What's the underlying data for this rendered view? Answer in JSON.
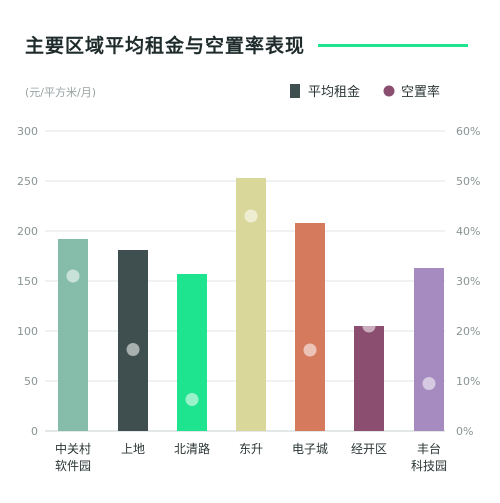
{
  "header": {
    "title": "主要区域平均租金与空置率表现",
    "accent_color": "#1ee38f"
  },
  "chart_data": {
    "type": "bar",
    "title": "主要区域平均租金与空置率表现",
    "y_unit_label": "(元/平方米/月)",
    "categories": [
      [
        "中关村",
        "软件园"
      ],
      [
        "上地"
      ],
      [
        "北清路"
      ],
      [
        "东升"
      ],
      [
        "电子城"
      ],
      [
        "经开区"
      ],
      [
        "丰台",
        "科技园"
      ]
    ],
    "series": [
      {
        "name": "平均租金",
        "kind": "bar",
        "axis": "left",
        "values": [
          192,
          181,
          157,
          253,
          208,
          105,
          163
        ],
        "colors": [
          "#86bcaa",
          "#3f4e4f",
          "#1ee38f",
          "#d9d799",
          "#d67a5e",
          "#8b4d70",
          "#a58bc0"
        ],
        "legend_color": "#3f4e4f"
      },
      {
        "name": "空置率",
        "kind": "point",
        "axis": "right",
        "values": [
          31,
          16.3,
          6.3,
          43,
          16.2,
          21,
          9.5
        ],
        "legend_color": "#8b4d70"
      }
    ],
    "y_left": {
      "min": 0,
      "max": 300,
      "ticks": [
        0,
        50,
        100,
        150,
        200,
        250,
        300
      ]
    },
    "y_right": {
      "min": 0,
      "max": 60,
      "ticks": [
        "0%",
        "10%",
        "20%",
        "30%",
        "40%",
        "50%",
        "60%"
      ]
    },
    "grid": true,
    "legend_position": "top-right"
  }
}
